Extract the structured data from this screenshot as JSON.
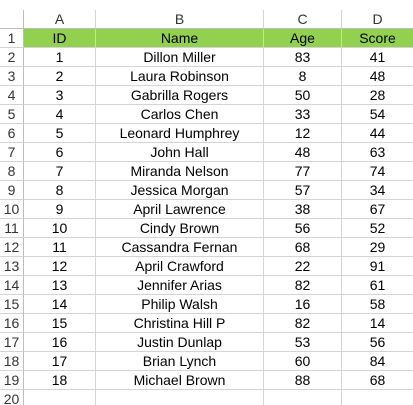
{
  "columns": [
    "A",
    "B",
    "C",
    "D"
  ],
  "row_numbers": [
    "1",
    "2",
    "3",
    "4",
    "5",
    "6",
    "7",
    "8",
    "9",
    "10",
    "11",
    "12",
    "13",
    "14",
    "15",
    "16",
    "17",
    "18",
    "19",
    "20"
  ],
  "header": [
    "ID",
    "Name",
    "Age",
    "Score"
  ],
  "rows": [
    [
      "1",
      "Dillon Miller",
      "83",
      "41"
    ],
    [
      "2",
      "Laura Robinson",
      "8",
      "48"
    ],
    [
      "3",
      "Gabrilla Rogers",
      "50",
      "28"
    ],
    [
      "4",
      "Carlos Chen",
      "33",
      "54"
    ],
    [
      "5",
      "Leonard Humphrey",
      "12",
      "44"
    ],
    [
      "6",
      "John Hall",
      "48",
      "63"
    ],
    [
      "7",
      "Miranda Nelson",
      "77",
      "74"
    ],
    [
      "8",
      "Jessica Morgan",
      "57",
      "34"
    ],
    [
      "9",
      "April Lawrence",
      "38",
      "67"
    ],
    [
      "10",
      "Cindy Brown",
      "56",
      "52"
    ],
    [
      "11",
      "Cassandra Fernan",
      "68",
      "29"
    ],
    [
      "12",
      "April Crawford",
      "22",
      "91"
    ],
    [
      "13",
      "Jennifer Arias",
      "82",
      "61"
    ],
    [
      "14",
      "Philip Walsh",
      "16",
      "58"
    ],
    [
      "15",
      "Christina Hill P",
      "82",
      "14"
    ],
    [
      "16",
      "Justin Dunlap",
      "53",
      "56"
    ],
    [
      "17",
      "Brian Lynch",
      "60",
      "84"
    ],
    [
      "18",
      "Michael Brown",
      "88",
      "68"
    ]
  ],
  "colors": {
    "header_fill": "#92d050",
    "gridline": "#d4d4d4"
  }
}
